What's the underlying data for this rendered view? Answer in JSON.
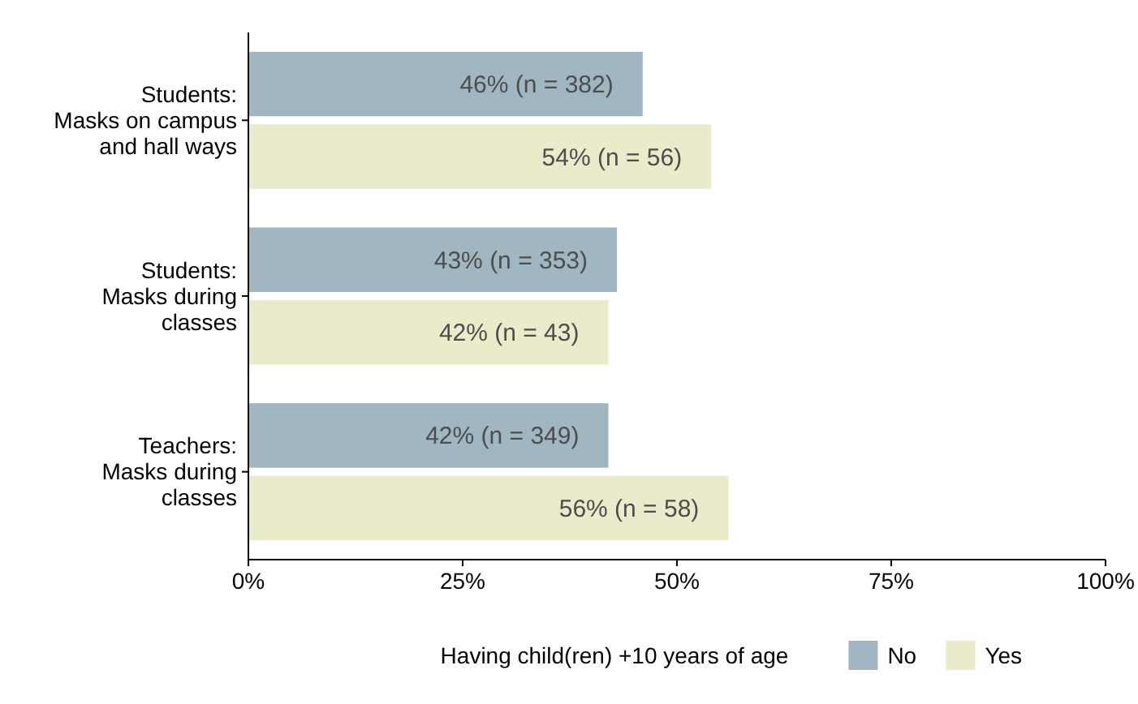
{
  "chart_data": {
    "type": "bar",
    "orientation": "horizontal",
    "categories": [
      "Students:\nMasks on campus\nand hall ways",
      "Students:\nMasks during\nclasses",
      "Teachers:\nMasks during\nclasses"
    ],
    "series": [
      {
        "name": "No",
        "color": "#a0b7c2",
        "values": [
          46,
          43,
          42
        ],
        "value_labels": [
          "46% (n = 382)",
          "43% (n = 353)",
          "42% (n = 349)"
        ]
      },
      {
        "name": "Yes",
        "color": "#e9ebcb",
        "values": [
          54,
          42,
          56
        ],
        "value_labels": [
          "54% (n = 56)",
          "42% (n = 43)",
          "56% (n = 58)"
        ]
      }
    ],
    "xlim": [
      0,
      100
    ],
    "xticks": [
      {
        "value": 0,
        "label": "0%"
      },
      {
        "value": 25,
        "label": "25%"
      },
      {
        "value": 50,
        "label": "50%"
      },
      {
        "value": 75,
        "label": "75%"
      },
      {
        "value": 100,
        "label": "100%"
      }
    ],
    "legend": "bottom",
    "legend_title": "Having child(ren) +10 years of age",
    "grid": false
  }
}
